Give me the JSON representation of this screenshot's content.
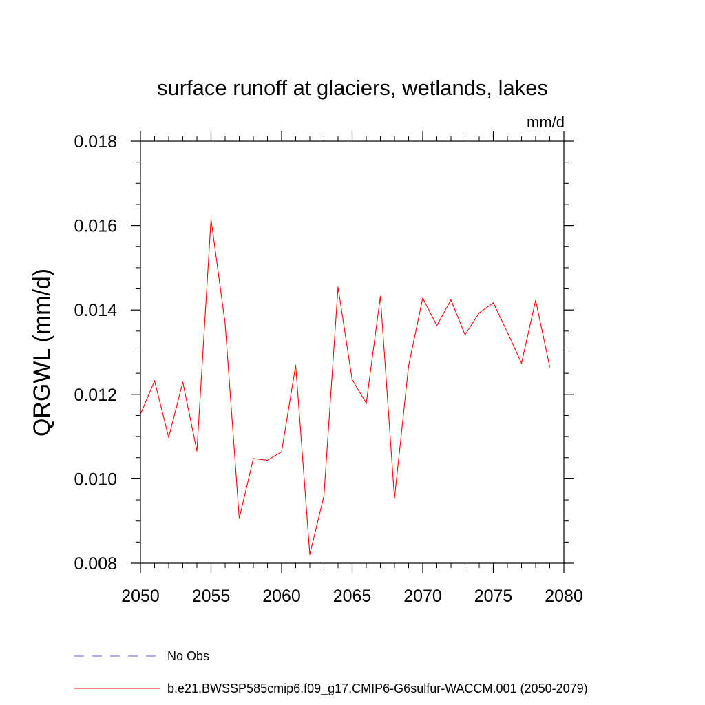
{
  "chart_data": {
    "type": "line",
    "title": "surface runoff at glaciers, wetlands, lakes",
    "units": "mm/d",
    "ylabel": "QRGWL  (mm/d)",
    "xlabel": "",
    "xlim": [
      2050,
      2080
    ],
    "ylim": [
      0.008,
      0.018
    ],
    "x_ticks": [
      2050,
      2055,
      2060,
      2065,
      2070,
      2075,
      2080
    ],
    "x_tick_labels": [
      "2050",
      "2055",
      "2060",
      "2065",
      "2070",
      "2075",
      "2080"
    ],
    "y_ticks": [
      0.008,
      0.01,
      0.012,
      0.014,
      0.016,
      0.018
    ],
    "y_tick_labels": [
      "0.008",
      "0.010",
      "0.012",
      "0.014",
      "0.016",
      "0.018"
    ],
    "grid": false,
    "legend_position": "bottom",
    "legend": [
      {
        "label": "No Obs",
        "color": "#6a5acd",
        "style": "dashed"
      },
      {
        "label": "b.e21.BWSSP585cmip6.f09_g17.CMIP6-G6sulfur-WACCM.001 (2050-2079)",
        "color": "#ff0000",
        "style": "solid"
      }
    ],
    "series": [
      {
        "name": "b.e21.BWSSP585cmip6.f09_g17.CMIP6-G6sulfur-WACCM.001 (2050-2079)",
        "color": "#ff0000",
        "x": [
          2050,
          2051,
          2052,
          2053,
          2054,
          2055,
          2056,
          2057,
          2058,
          2059,
          2060,
          2061,
          2062,
          2063,
          2064,
          2065,
          2066,
          2067,
          2068,
          2069,
          2070,
          2071,
          2072,
          2073,
          2074,
          2075,
          2076,
          2077,
          2078,
          2079
        ],
        "values": [
          0.01153,
          0.01232,
          0.01098,
          0.01229,
          0.01066,
          0.01615,
          0.01368,
          0.00906,
          0.01048,
          0.01044,
          0.01064,
          0.01269,
          0.00821,
          0.00959,
          0.01454,
          0.01235,
          0.01179,
          0.01432,
          0.00954,
          0.01268,
          0.01428,
          0.01363,
          0.01424,
          0.01341,
          0.01393,
          0.01417,
          0.01347,
          0.01274,
          0.01423,
          0.01265
        ]
      }
    ]
  }
}
